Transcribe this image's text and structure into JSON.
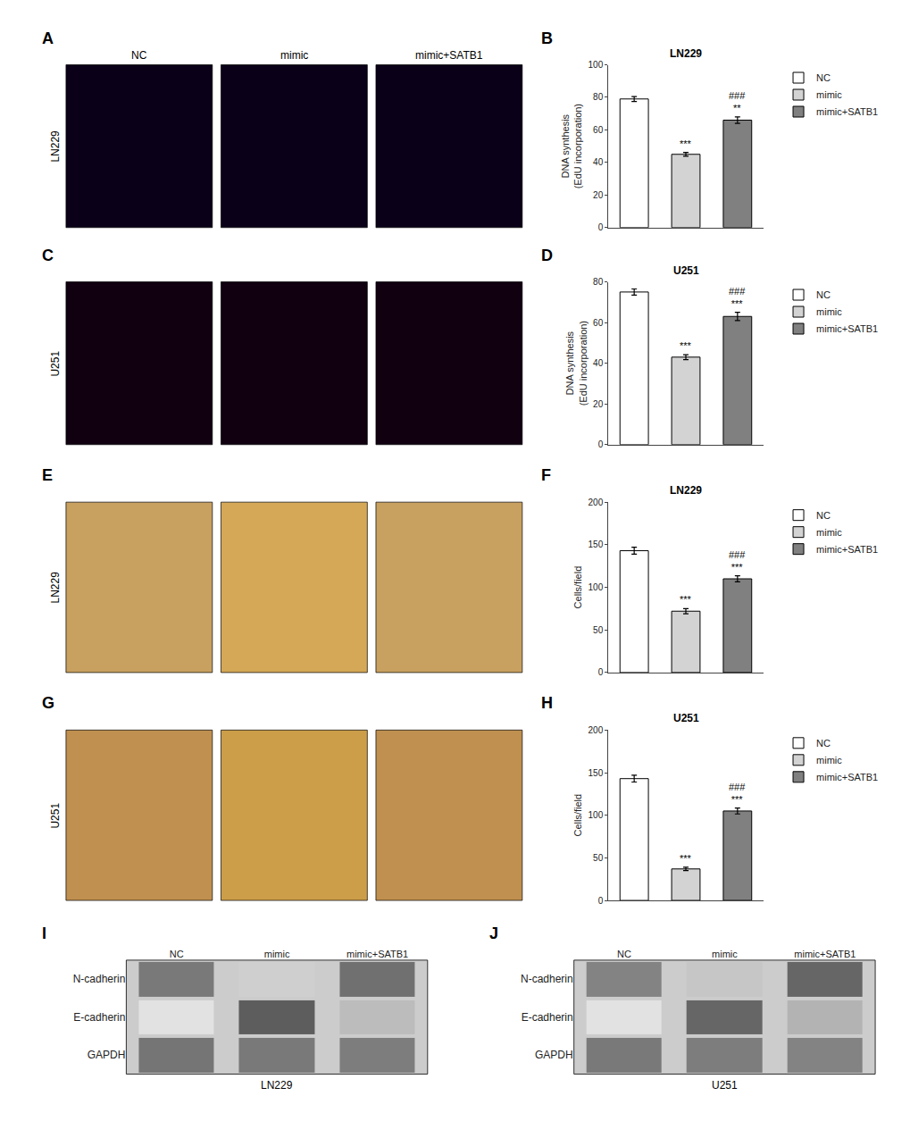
{
  "chart_data": [
    {
      "type": "image",
      "categories": [
        "NC",
        "mimic",
        "mimic+SATB1"
      ],
      "colors": [
        "#0a0018",
        "#0a0018",
        "#0a0018"
      ],
      "ylabel": "LN229",
      "annotations": [
        {
          "text": "A"
        }
      ]
    },
    {
      "type": "bar",
      "title": "LN229",
      "ylabel": "DNA synthesis\n(EdU incorporation)",
      "categories": [
        "NC",
        "mimic",
        "mimic+SATB1"
      ],
      "values": [
        79,
        45,
        66
      ],
      "errors": [
        1.5,
        1.2,
        2.0
      ],
      "colors": [
        "#ffffff",
        "#d3d3d3",
        "#808080"
      ],
      "ylim": [
        0,
        100
      ],
      "yticks": [
        0,
        20,
        40,
        60,
        80,
        100
      ],
      "tick_labels": "y",
      "legend": "upper right",
      "annotations": [
        {
          "text": "B"
        },
        {
          "x": "mimic",
          "text": "***"
        },
        {
          "x": "mimic+SATB1",
          "text": "###\n**"
        }
      ]
    },
    {
      "type": "image",
      "categories": [
        null,
        null,
        null
      ],
      "colors": [
        "#100010",
        "#100010",
        "#100010"
      ],
      "ylabel": "U251",
      "annotations": [
        {
          "text": "C"
        }
      ]
    },
    {
      "type": "bar",
      "title": "U251",
      "ylabel": "DNA synthesis\n(EdU incorporation)",
      "categories": [
        "NC",
        "mimic",
        "mimic+SATB1"
      ],
      "values": [
        75,
        43,
        63
      ],
      "errors": [
        1.5,
        1.2,
        2.0
      ],
      "colors": [
        "#ffffff",
        "#d3d3d3",
        "#808080"
      ],
      "ylim": [
        0,
        80
      ],
      "yticks": [
        0,
        20,
        40,
        60,
        80
      ],
      "tick_labels": "y",
      "legend": "upper right",
      "annotations": [
        {
          "text": "D"
        },
        {
          "x": "mimic",
          "text": "***"
        },
        {
          "x": "mimic+SATB1",
          "text": "###\n***"
        }
      ]
    },
    {
      "type": "image",
      "categories": [
        null,
        null,
        null
      ],
      "colors": [
        "#c8a060",
        "#d4a857",
        "#c8a060"
      ],
      "ylabel": "LN229",
      "annotations": [
        {
          "text": "E"
        }
      ]
    },
    {
      "type": "bar",
      "title": "LN229",
      "ylabel": "Cells/field",
      "categories": [
        "NC",
        "mimic",
        "mimic+SATB1"
      ],
      "values": [
        143,
        72,
        110
      ],
      "errors": [
        4,
        3,
        3.5
      ],
      "colors": [
        "#ffffff",
        "#d3d3d3",
        "#808080"
      ],
      "ylim": [
        0,
        200
      ],
      "yticks": [
        0,
        50,
        100,
        150,
        200
      ],
      "tick_labels": "y",
      "legend": "upper right",
      "annotations": [
        {
          "text": "F"
        },
        {
          "x": "mimic",
          "text": "***"
        },
        {
          "x": "mimic+SATB1",
          "text": "###\n***"
        }
      ]
    },
    {
      "type": "image",
      "categories": [
        null,
        null,
        null
      ],
      "colors": [
        "#c09050",
        "#cc9e4a",
        "#c09050"
      ],
      "ylabel": "U251",
      "annotations": [
        {
          "text": "G"
        }
      ]
    },
    {
      "type": "bar",
      "title": "U251",
      "ylabel": "Cells/field",
      "categories": [
        "NC",
        "mimic",
        "mimic+SATB1"
      ],
      "values": [
        143,
        37,
        105
      ],
      "errors": [
        4,
        2,
        3.5
      ],
      "colors": [
        "#ffffff",
        "#d3d3d3",
        "#808080"
      ],
      "ylim": [
        0,
        200
      ],
      "yticks": [
        0,
        50,
        100,
        150,
        200
      ],
      "tick_labels": "y",
      "legend": "upper right",
      "annotations": [
        {
          "text": "H"
        },
        {
          "x": "mimic",
          "text": "***"
        },
        {
          "x": "mimic+SATB1",
          "text": "###\n***"
        }
      ]
    },
    {
      "type": "heatmap",
      "x": [
        "NC",
        "mimic",
        "mimic+SATB1"
      ],
      "y": [
        "N-cadherin",
        "E-cadherin",
        "GAPDH"
      ],
      "values": [
        [
          0.7,
          0.25,
          0.75
        ],
        [
          0.15,
          0.85,
          0.35
        ],
        [
          0.72,
          0.7,
          0.68
        ]
      ],
      "zlim": [
        0,
        1
      ],
      "xlabel": "LN229",
      "annotations": [
        {
          "text": "I"
        }
      ]
    },
    {
      "type": "heatmap",
      "x": [
        "NC",
        "mimic",
        "mimic+SATB1"
      ],
      "y": [
        "N-cadherin",
        "E-cadherin",
        "GAPDH"
      ],
      "values": [
        [
          0.65,
          0.3,
          0.8
        ],
        [
          0.15,
          0.8,
          0.4
        ],
        [
          0.7,
          0.68,
          0.65
        ]
      ],
      "zlim": [
        0,
        1
      ],
      "xlabel": "U251",
      "annotations": [
        {
          "text": "J"
        }
      ]
    }
  ]
}
